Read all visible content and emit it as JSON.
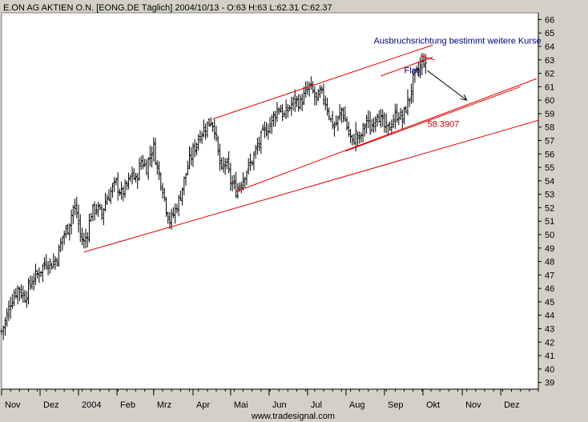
{
  "chart_data": {
    "type": "ohlc",
    "title": "E.ON AG AKTIEN O.N. [EONG.DE  Täglich] 2004/10/13 - O:63 H:63 L:62.31 C:62.37",
    "footer": "www.tradesignal.com",
    "colors": {
      "background": "#ffffff",
      "frame": "#d4d0c8",
      "bars": "#000000",
      "lines": "#e00000",
      "annotation": "#000080",
      "value_label": "#c00000"
    },
    "ylim": [
      38.5,
      66.5
    ],
    "yticks": [
      39,
      40,
      41,
      42,
      43,
      44,
      45,
      46,
      47,
      48,
      49,
      50,
      51,
      52,
      53,
      54,
      55,
      56,
      57,
      58,
      59,
      60,
      61,
      62,
      63,
      64,
      65,
      66
    ],
    "xticks": [
      {
        "label": "Nov",
        "t": 0.0
      },
      {
        "label": "Dez",
        "t": 21.5
      },
      {
        "label": "2004",
        "t": 43.0
      },
      {
        "label": "Feb",
        "t": 64.5
      },
      {
        "label": "Mrz",
        "t": 85.0
      },
      {
        "label": "Apr",
        "t": 107.0
      },
      {
        "label": "Mai",
        "t": 128.0
      },
      {
        "label": "Jun",
        "t": 149.5
      },
      {
        "label": "Jul",
        "t": 171.0
      },
      {
        "label": "Aug",
        "t": 192.5
      },
      {
        "label": "Sep",
        "t": 214.0
      },
      {
        "label": "Okt",
        "t": 235.5
      },
      {
        "label": "Nov",
        "t": 257.5
      },
      {
        "label": "Dez",
        "t": 279.0
      }
    ],
    "xlim": [
      0,
      300
    ],
    "price_path": [
      [
        0,
        42.8
      ],
      [
        2,
        43.5
      ],
      [
        5,
        45.0
      ],
      [
        9,
        46.0
      ],
      [
        13,
        45.4
      ],
      [
        17,
        46.6
      ],
      [
        21,
        47.2
      ],
      [
        25,
        48.0
      ],
      [
        28,
        47.8
      ],
      [
        31,
        48.3
      ],
      [
        34,
        49.8
      ],
      [
        37,
        50.5
      ],
      [
        40,
        52.0
      ],
      [
        42,
        51.6
      ],
      [
        44,
        50.0
      ],
      [
        46,
        49.4
      ],
      [
        48,
        50.2
      ],
      [
        50,
        51.6
      ],
      [
        53,
        52.0
      ],
      [
        56,
        51.5
      ],
      [
        58,
        52.5
      ],
      [
        61,
        53.2
      ],
      [
        64,
        53.8
      ],
      [
        67,
        53.0
      ],
      [
        70,
        53.6
      ],
      [
        73,
        54.5
      ],
      [
        75,
        54.0
      ],
      [
        78,
        55.5
      ],
      [
        81,
        55.0
      ],
      [
        83,
        56.0
      ],
      [
        85,
        56.5
      ],
      [
        87,
        55.0
      ],
      [
        90,
        53.5
      ],
      [
        92,
        52.0
      ],
      [
        94,
        51.0
      ],
      [
        96,
        51.5
      ],
      [
        99,
        52.5
      ],
      [
        102,
        54.0
      ],
      [
        105,
        55.5
      ],
      [
        108,
        56.5
      ],
      [
        111,
        57.5
      ],
      [
        114,
        58.0
      ],
      [
        117,
        58.5
      ],
      [
        119,
        58.0
      ],
      [
        121,
        56.0
      ],
      [
        123,
        54.6
      ],
      [
        125,
        55.5
      ],
      [
        128,
        54.0
      ],
      [
        131,
        53.3
      ],
      [
        134,
        54.0
      ],
      [
        137,
        54.8
      ],
      [
        140,
        55.5
      ],
      [
        143,
        56.5
      ],
      [
        146,
        57.5
      ],
      [
        149,
        58.0
      ],
      [
        152,
        58.8
      ],
      [
        155,
        59.5
      ],
      [
        158,
        58.8
      ],
      [
        161,
        59.5
      ],
      [
        164,
        60.0
      ],
      [
        167,
        59.8
      ],
      [
        170,
        60.5
      ],
      [
        172,
        61.0
      ],
      [
        174,
        60.6
      ],
      [
        176,
        60.0
      ],
      [
        178,
        60.5
      ],
      [
        180,
        60.2
      ],
      [
        182,
        59.5
      ],
      [
        184,
        58.5
      ],
      [
        186,
        58.0
      ],
      [
        188,
        58.5
      ],
      [
        190,
        59.3
      ],
      [
        192,
        58.5
      ],
      [
        194,
        57.5
      ],
      [
        196,
        56.8
      ],
      [
        198,
        57.5
      ],
      [
        200,
        57.0
      ],
      [
        202,
        57.8
      ],
      [
        204,
        58.5
      ],
      [
        206,
        57.8
      ],
      [
        208,
        58.5
      ],
      [
        210,
        59.2
      ],
      [
        212,
        58.5
      ],
      [
        214,
        58.0
      ],
      [
        216,
        57.8
      ],
      [
        218,
        58.3
      ],
      [
        220,
        58.8
      ],
      [
        222,
        59.0
      ],
      [
        224,
        58.5
      ],
      [
        226,
        59.5
      ],
      [
        228,
        60.2
      ],
      [
        230,
        61.5
      ],
      [
        232,
        62.0
      ],
      [
        234,
        62.5
      ],
      [
        236,
        63.0
      ],
      [
        237,
        62.4
      ]
    ],
    "lines": [
      {
        "name": "upper-channel",
        "from": [
          118,
          58.6
        ],
        "to": [
          241,
          64.1
        ]
      },
      {
        "name": "channel-inner-top",
        "from": [
          212,
          61.8
        ],
        "to": [
          241,
          63.2
        ]
      },
      {
        "name": "middle-channel",
        "from": [
          131,
          53.2
        ],
        "to": [
          299,
          61.6
        ]
      },
      {
        "name": "flag-base",
        "from": [
          192,
          56.2
        ],
        "to": [
          290,
          61.0
        ]
      },
      {
        "name": "long-term-trend",
        "from": [
          46,
          48.7
        ],
        "to": [
          300,
          58.5
        ]
      },
      {
        "name": "flag-top",
        "from": [
          234,
          63.3
        ],
        "to": [
          242,
          63.0
        ]
      }
    ],
    "arrow": {
      "from": [
        238,
        62.2
      ],
      "to": [
        260,
        60.0
      ]
    },
    "annotations": [
      {
        "name": "breakout-annotation",
        "text": "Ausbruchsrichtung bestimmt weitere Kurse",
        "t": 208.0,
        "y": 64.2,
        "color": "#000080"
      },
      {
        "name": "flag-label",
        "text": "Flag",
        "t": 225.0,
        "y": 62.0,
        "color": "#000080"
      },
      {
        "name": "value-label",
        "text": "58.3907",
        "t": 238.0,
        "y": 58.0,
        "color": "#c00000"
      }
    ]
  }
}
